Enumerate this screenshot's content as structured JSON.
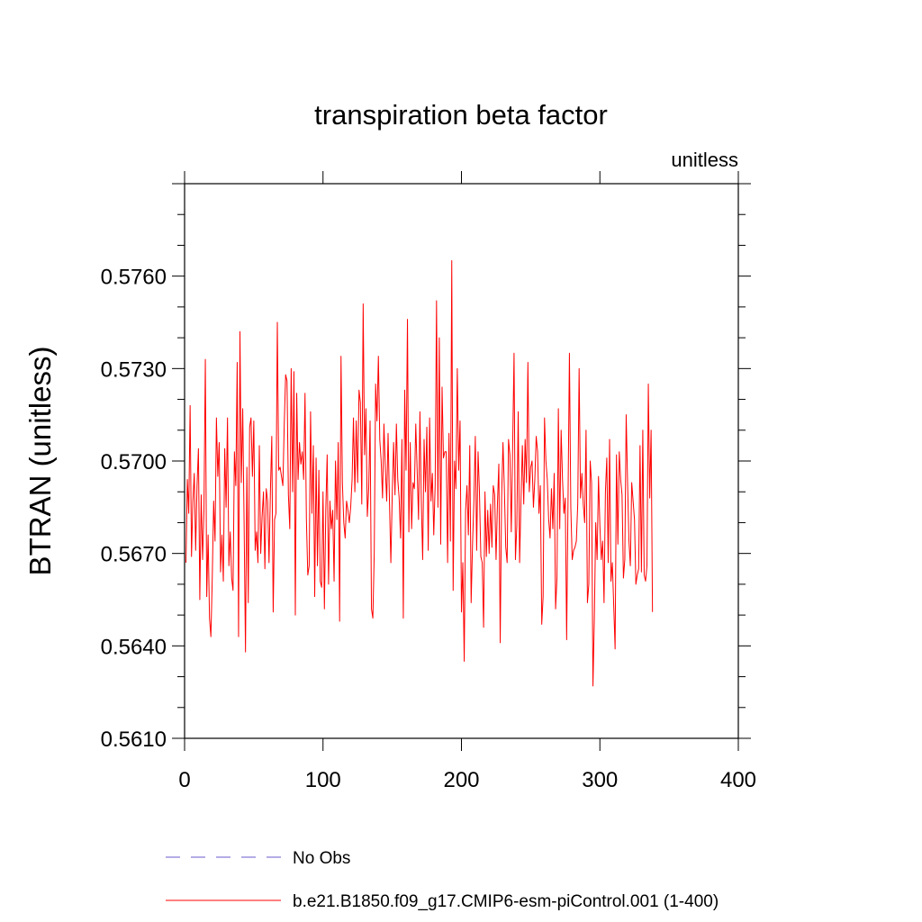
{
  "chart_data": {
    "type": "line",
    "title": "transpiration beta factor",
    "units_label": "unitless",
    "xlabel": "",
    "ylabel": "BTRAN  (unitless)",
    "xlim": [
      0,
      400
    ],
    "ylim": [
      0.561,
      0.579
    ],
    "xticks": [
      0,
      100,
      200,
      300,
      400
    ],
    "xtick_labels": [
      "0",
      "100",
      "200",
      "300",
      "400"
    ],
    "yticks": [
      0.561,
      0.564,
      0.567,
      0.57,
      0.573,
      0.576
    ],
    "ytick_labels": [
      "0.5610",
      "0.5640",
      "0.5670",
      "0.5700",
      "0.5730",
      "0.5760"
    ],
    "grid": false,
    "legend_position": "bottom",
    "series": [
      {
        "name": "No Obs",
        "color": "#6a5acd",
        "dash": "dashed",
        "values": []
      },
      {
        "name": "b.e21.B1850.f09_g17.CMIP6-esm-piControl.001 (1-400)",
        "color": "#ff0000",
        "dash": "solid",
        "x_start": 1,
        "x_step": 1,
        "values": [
          0.5667,
          0.5694,
          0.5683,
          0.5718,
          0.5669,
          0.5687,
          0.5696,
          0.5671,
          0.5692,
          0.5704,
          0.5655,
          0.5689,
          0.5668,
          0.5684,
          0.5733,
          0.5656,
          0.5676,
          0.5649,
          0.5643,
          0.5662,
          0.5687,
          0.5674,
          0.5714,
          0.5695,
          0.5706,
          0.5664,
          0.5676,
          0.5661,
          0.5704,
          0.5685,
          0.5714,
          0.5666,
          0.5677,
          0.5662,
          0.5658,
          0.5703,
          0.5692,
          0.5732,
          0.5643,
          0.5742,
          0.5693,
          0.5717,
          0.568,
          0.5638,
          0.5698,
          0.5654,
          0.5711,
          0.5714,
          0.5695,
          0.5713,
          0.5671,
          0.5677,
          0.5667,
          0.5705,
          0.567,
          0.5682,
          0.569,
          0.5665,
          0.5691,
          0.5687,
          0.5667,
          0.569,
          0.5708,
          0.5651,
          0.5681,
          0.5683,
          0.5745,
          0.5697,
          0.5698,
          0.5695,
          0.5692,
          0.5712,
          0.5728,
          0.5726,
          0.5689,
          0.5678,
          0.573,
          0.569,
          0.5729,
          0.565,
          0.5722,
          0.5694,
          0.5706,
          0.5699,
          0.5703,
          0.5694,
          0.5722,
          0.5681,
          0.5663,
          0.5666,
          0.5716,
          0.5683,
          0.5705,
          0.5656,
          0.5701,
          0.5666,
          0.5697,
          0.5661,
          0.5659,
          0.569,
          0.5652,
          0.5684,
          0.5702,
          0.566,
          0.5687,
          0.5678,
          0.5684,
          0.5661,
          0.57,
          0.5681,
          0.5706,
          0.5648,
          0.5734,
          0.5693,
          0.568,
          0.5675,
          0.5687,
          0.5684,
          0.568,
          0.5685,
          0.5694,
          0.5714,
          0.569,
          0.5713,
          0.5693,
          0.5723,
          0.5719,
          0.5686,
          0.5751,
          0.5702,
          0.5717,
          0.5682,
          0.5691,
          0.5713,
          0.5652,
          0.5649,
          0.567,
          0.5725,
          0.5713,
          0.5734,
          0.5707,
          0.57,
          0.5688,
          0.5712,
          0.5698,
          0.5687,
          0.5709,
          0.5687,
          0.5667,
          0.5689,
          0.5706,
          0.5689,
          0.5712,
          0.5694,
          0.5688,
          0.5675,
          0.5707,
          0.5649,
          0.5723,
          0.5697,
          0.5746,
          0.5677,
          0.5706,
          0.5678,
          0.5693,
          0.5691,
          0.5712,
          0.5697,
          0.5681,
          0.5716,
          0.5687,
          0.5668,
          0.5707,
          0.569,
          0.5711,
          0.5671,
          0.5714,
          0.5687,
          0.5696,
          0.5676,
          0.5692,
          0.5752,
          0.5685,
          0.574,
          0.5673,
          0.5724,
          0.5701,
          0.5703,
          0.5703,
          0.5667,
          0.5709,
          0.5674,
          0.5765,
          0.5658,
          0.57,
          0.5691,
          0.573,
          0.5697,
          0.5713,
          0.5651,
          0.5667,
          0.5635,
          0.5684,
          0.5692,
          0.5676,
          0.5705,
          0.5654,
          0.5673,
          0.5687,
          0.5708,
          0.5671,
          0.5703,
          0.569,
          0.5669,
          0.5667,
          0.5646,
          0.569,
          0.5669,
          0.5684,
          0.567,
          0.5686,
          0.5672,
          0.5692,
          0.5689,
          0.5668,
          0.5686,
          0.5699,
          0.5641,
          0.5688,
          0.5706,
          0.5691,
          0.5672,
          0.5667,
          0.5707,
          0.5702,
          0.5677,
          0.5705,
          0.5735,
          0.5668,
          0.5679,
          0.5716,
          0.5667,
          0.5687,
          0.5705,
          0.5686,
          0.5707,
          0.5693,
          0.5732,
          0.569,
          0.5698,
          0.57,
          0.5685,
          0.5694,
          0.5708,
          0.5703,
          0.5683,
          0.5692,
          0.5647,
          0.5656,
          0.5714,
          0.57,
          0.5694,
          0.5681,
          0.5675,
          0.5691,
          0.5678,
          0.5696,
          0.5652,
          0.5662,
          0.5717,
          0.5678,
          0.571,
          0.5694,
          0.5683,
          0.5688,
          0.5642,
          0.5688,
          0.5735,
          0.5685,
          0.5668,
          0.5671,
          0.5672,
          0.5674,
          0.5686,
          0.573,
          0.5688,
          0.5696,
          0.5686,
          0.568,
          0.571,
          0.5654,
          0.566,
          0.57,
          0.5693,
          0.5627,
          0.5649,
          0.568,
          0.5668,
          0.5695,
          0.5679,
          0.5668,
          0.5674,
          0.5654,
          0.569,
          0.5701,
          0.5667,
          0.5707,
          0.5661,
          0.5667,
          0.5653,
          0.5639,
          0.5702,
          0.5673,
          0.5703,
          0.5694,
          0.5689,
          0.5662,
          0.5668,
          0.5715,
          0.5693,
          0.5674,
          0.5666,
          0.5693,
          0.5687,
          0.5681,
          0.566,
          0.5663,
          0.5665,
          0.5705,
          0.5664,
          0.571,
          0.5663,
          0.5661,
          0.5666,
          0.5725,
          0.5688,
          0.571,
          0.5651
        ]
      }
    ]
  }
}
